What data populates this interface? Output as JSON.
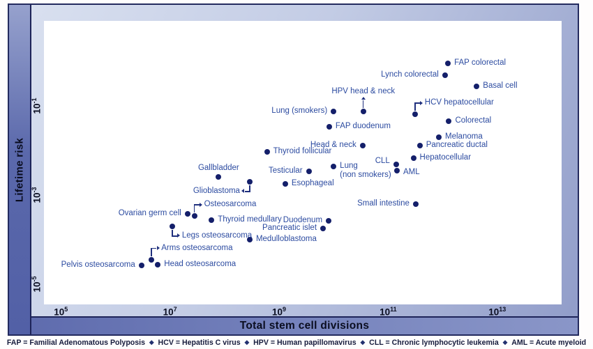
{
  "axes": {
    "x_label": "Total stem cell divisions",
    "y_label": "Lifetime risk",
    "x_ticks": [
      {
        "base": "10",
        "exp": "5",
        "log10": 5
      },
      {
        "base": "10",
        "exp": "7",
        "log10": 7
      },
      {
        "base": "10",
        "exp": "9",
        "log10": 9
      },
      {
        "base": "10",
        "exp": "11",
        "log10": 11
      },
      {
        "base": "10",
        "exp": "13",
        "log10": 13
      }
    ],
    "y_ticks": [
      {
        "base": "10",
        "exp": "-1",
        "log10": -1
      },
      {
        "base": "10",
        "exp": "-3",
        "log10": -3
      },
      {
        "base": "10",
        "exp": "-5",
        "log10": -5
      }
    ]
  },
  "footer": {
    "separator": "◆",
    "items": [
      "FAP = Familial Adenomatous Polyposis",
      "HCV = Hepatitis C virus",
      "HPV = Human papillomavirus",
      "CLL = Chronic lymphocytic leukemia",
      "AML = Acute myeloid leukemia"
    ]
  },
  "colors": {
    "dot": "#141f6a",
    "label": "#2c4ba0",
    "connector": "#1f2f7d",
    "frame_border": "#232a5e",
    "axis_line": "#1d2358",
    "left_strip": "#5a68ab",
    "bottom_strip": "#6b79b6"
  },
  "chart_data": {
    "type": "scatter",
    "title": "",
    "xlabel": "Total stem cell divisions",
    "ylabel": "Lifetime risk",
    "x_scale": "log",
    "y_scale": "log",
    "xlim_log10": [
      4.69,
      14.18
    ],
    "ylim_log10": [
      -5.45,
      0.91
    ],
    "grid": false,
    "points": [
      {
        "label": "FAP colorectal",
        "x": 1250000000000.0,
        "y": 0.9,
        "side": "right"
      },
      {
        "label": "Lynch colorectal",
        "x": 1100000000000.0,
        "y": 0.49,
        "side": "left"
      },
      {
        "label": "Basal cell",
        "x": 4200000000000.0,
        "y": 0.28,
        "side": "right"
      },
      {
        "label": "HPV head & neck",
        "x": 35000000000.0,
        "y": 0.075,
        "side": "above",
        "connector": "vline"
      },
      {
        "label": "Lung (smokers)",
        "x": 10000000000.0,
        "y": 0.075,
        "side": "left"
      },
      {
        "label": "HCV hepatocellular",
        "x": 310000000000.0,
        "y": 0.065,
        "side": "right",
        "connector": "elbow-up-right"
      },
      {
        "label": "Colorectal",
        "x": 1300000000000.0,
        "y": 0.045,
        "side": "right"
      },
      {
        "label": "FAP duodenum",
        "x": 8300000000.0,
        "y": 0.034,
        "side": "right"
      },
      {
        "label": "Melanoma",
        "x": 850000000000.0,
        "y": 0.02,
        "side": "right"
      },
      {
        "label": "Head & neck",
        "x": 34000000000.0,
        "y": 0.013,
        "side": "left"
      },
      {
        "label": "Pancreatic ductal",
        "x": 380000000000.0,
        "y": 0.013,
        "side": "right"
      },
      {
        "label": "Thyroid follicular",
        "x": 600000000.0,
        "y": 0.0093,
        "side": "right"
      },
      {
        "label": "Hepatocellular",
        "x": 290000000000.0,
        "y": 0.0067,
        "side": "right"
      },
      {
        "label": "CLL",
        "x": 140000000000.0,
        "y": 0.0049,
        "side": "left",
        "dy": -4
      },
      {
        "label": "AML",
        "x": 145000000000.0,
        "y": 0.0036,
        "side": "right",
        "dy": 3
      },
      {
        "label": "Lung\n(non smokers)",
        "x": 10000000000.0,
        "y": 0.0044,
        "side": "right"
      },
      {
        "label": "Testicular",
        "x": 3500000000.0,
        "y": 0.0034,
        "side": "left"
      },
      {
        "label": "Esophageal",
        "x": 1300000000.0,
        "y": 0.0018,
        "side": "right"
      },
      {
        "label": "Gallbladder",
        "x": 78000000.0,
        "y": 0.0026,
        "side": "above"
      },
      {
        "label": "Glioblastoma",
        "x": 290000000.0,
        "y": 0.002,
        "side": "left",
        "connector": "elbow-down-left"
      },
      {
        "label": "Small intestine",
        "x": 320000000000.0,
        "y": 0.00063,
        "side": "left"
      },
      {
        "label": "Osteosarcoma",
        "x": 28000000.0,
        "y": 0.00034,
        "side": "right",
        "connector": "elbow-up-right"
      },
      {
        "label": "Ovarian germ cell",
        "x": 21000000.0,
        "y": 0.00038,
        "side": "left"
      },
      {
        "label": "Thyroid medullary",
        "x": 58000000.0,
        "y": 0.00028,
        "side": "right"
      },
      {
        "label": "Duodenum",
        "x": 8100000000.0,
        "y": 0.00027,
        "side": "left"
      },
      {
        "label": "Pancreatic islet",
        "x": 6400000000.0,
        "y": 0.00018,
        "side": "left"
      },
      {
        "label": "Medulloblastoma",
        "x": 290000000.0,
        "y": 0.0001,
        "side": "right"
      },
      {
        "label": "Legs osteosarcoma",
        "x": 11000000.0,
        "y": 0.0002,
        "side": "right",
        "connector": "elbow-down-right"
      },
      {
        "label": "Arms osteosarcoma",
        "x": 4600000.0,
        "y": 3.6e-05,
        "side": "right",
        "connector": "elbow-up-right"
      },
      {
        "label": "Pelvis osteosarcoma",
        "x": 3000000.0,
        "y": 2.7e-05,
        "side": "left"
      },
      {
        "label": "Head osteosarcoma",
        "x": 6000000.0,
        "y": 2.8e-05,
        "side": "right"
      }
    ]
  }
}
